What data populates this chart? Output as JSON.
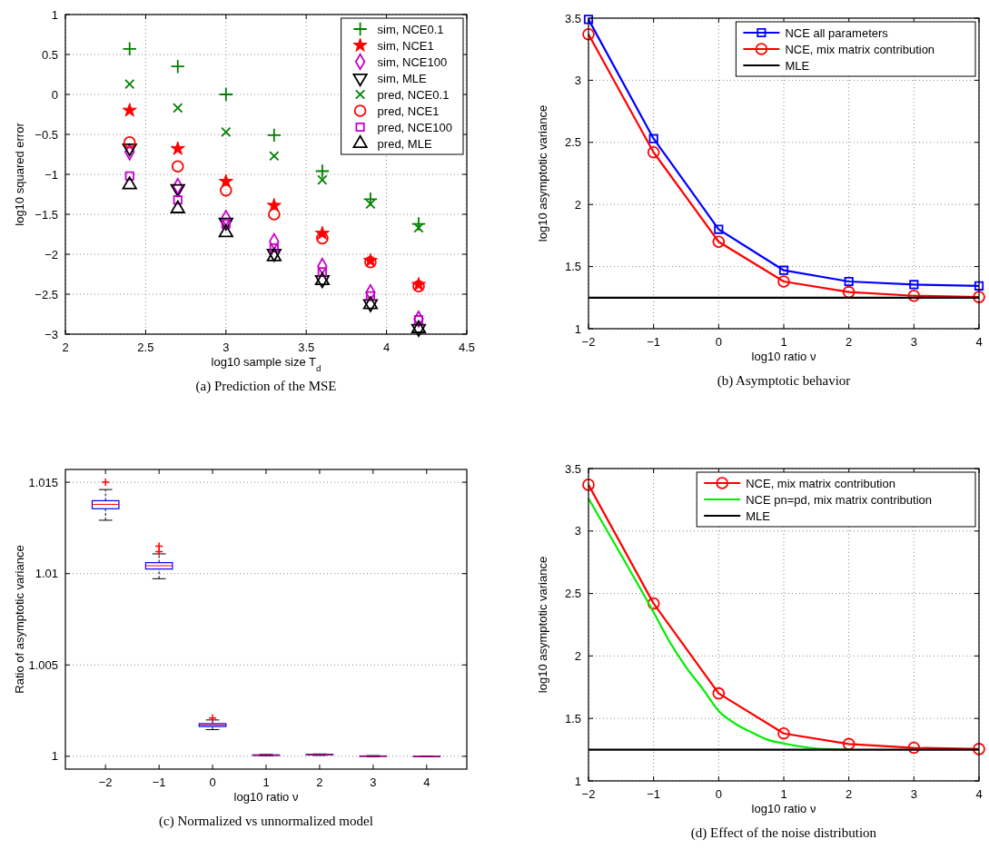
{
  "chart_data": [
    {
      "type": "scatter",
      "xlabel": "log10 sample size T$_{d}$",
      "ylabel": "log10 squared error",
      "annotations": [
        "(a) Prediction of the MSE"
      ],
      "x": [
        2.4,
        2.7,
        3.0,
        3.3,
        3.6,
        3.9,
        4.2
      ],
      "xlim": [
        2,
        4.5
      ],
      "xticks": [
        2,
        2.5,
        3,
        3.5,
        4,
        4.5
      ],
      "ylim": [
        -3,
        1
      ],
      "yticks": [
        -3,
        -2.5,
        -2,
        -1.5,
        -1,
        -0.5,
        0,
        0.5,
        1
      ],
      "grid": true,
      "legend": "top right",
      "series": [
        {
          "name": "sim, NCE0.1",
          "color": "#008000",
          "marker": "plus",
          "values": [
            0.57,
            0.35,
            0.0,
            -0.51,
            -0.96,
            -1.31,
            -1.62
          ]
        },
        {
          "name": "sim, NCE1",
          "color": "#ff0000",
          "marker": "star",
          "values": [
            -0.2,
            -0.68,
            -1.09,
            -1.39,
            -1.74,
            -2.08,
            -2.38
          ]
        },
        {
          "name": "sim, NCE100",
          "color": "#c800c8",
          "marker": "diamond",
          "values": [
            -0.72,
            -1.15,
            -1.55,
            -1.84,
            -2.15,
            -2.48,
            -2.81
          ]
        },
        {
          "name": "sim, MLE",
          "color": "#000000",
          "marker": "triangle-down",
          "values": [
            -0.67,
            -1.18,
            -1.6,
            -1.99,
            -2.32,
            -2.62,
            -2.93
          ]
        },
        {
          "name": "pred, NCE0.1",
          "color": "#008000",
          "marker": "cross",
          "values": [
            0.13,
            -0.17,
            -0.47,
            -0.77,
            -1.07,
            -1.37,
            -1.67
          ]
        },
        {
          "name": "pred, NCE1",
          "color": "#ff0000",
          "marker": "circle",
          "values": [
            -0.6,
            -0.9,
            -1.2,
            -1.5,
            -1.8,
            -2.1,
            -2.4
          ]
        },
        {
          "name": "pred, NCE100",
          "color": "#c800c8",
          "marker": "square",
          "values": [
            -1.02,
            -1.32,
            -1.62,
            -1.92,
            -2.22,
            -2.52,
            -2.82
          ]
        },
        {
          "name": "pred, MLE",
          "color": "#000000",
          "marker": "triangle",
          "values": [
            -1.13,
            -1.43,
            -1.73,
            -2.03,
            -2.33,
            -2.63,
            -2.93
          ]
        }
      ]
    },
    {
      "type": "line",
      "xlabel": "log10 ratio ν",
      "ylabel": "log10 asymptotic variance",
      "annotations": [
        "(b) Asymptotic behavior"
      ],
      "x": [
        -2,
        -1,
        0,
        1,
        2,
        3,
        4
      ],
      "xlim": [
        -2,
        4
      ],
      "xticks": [
        -2,
        -1,
        0,
        1,
        2,
        3,
        4
      ],
      "ylim": [
        1,
        3.5
      ],
      "yticks": [
        1,
        1.5,
        2,
        2.5,
        3,
        3.5
      ],
      "grid": true,
      "legend": "top right",
      "series": [
        {
          "name": "NCE all parameters",
          "color": "#0000ff",
          "marker": "square",
          "values": [
            3.49,
            2.53,
            1.8,
            1.47,
            1.38,
            1.355,
            1.345
          ]
        },
        {
          "name": "NCE, mix matrix contribution",
          "color": "#ff0000",
          "marker": "circle",
          "values": [
            3.37,
            2.42,
            1.7,
            1.38,
            1.295,
            1.265,
            1.255
          ]
        },
        {
          "name": "MLE",
          "color": "#000000",
          "marker": "none",
          "values": [
            1.25,
            1.25,
            1.25,
            1.25,
            1.25,
            1.25,
            1.25
          ]
        }
      ]
    },
    {
      "type": "box",
      "xlabel": "log10 ratio ν",
      "ylabel": "Ratio of asymptotic variance",
      "annotations": [
        "(c) Normalized vs unnormalized model"
      ],
      "categories": [
        "−2",
        "−1",
        "0",
        "1",
        "2",
        "3",
        "4"
      ],
      "ylim": [
        0.9993,
        1.0157
      ],
      "yticks": [
        1,
        1.005,
        1.01,
        1.015
      ],
      "grid": "y",
      "color": "#0000ff",
      "boxes": [
        {
          "low": 1.01292,
          "q1": 1.01355,
          "median": 1.01379,
          "q3": 1.01399,
          "high": 1.0146,
          "outliers": [
            1.015
          ]
        },
        {
          "low": 1.00972,
          "q1": 1.01025,
          "median": 1.01043,
          "q3": 1.0106,
          "high": 1.01108,
          "outliers": [
            1.0112,
            1.0115
          ]
        },
        {
          "low": 1.00146,
          "q1": 1.00163,
          "median": 1.00171,
          "q3": 1.00179,
          "high": 1.00199,
          "outliers": [
            1.0021
          ]
        },
        {
          "low": 1.00003,
          "q1": 1.00005,
          "median": 1.00006,
          "q3": 1.00008,
          "high": 1.0001
        },
        {
          "low": 1.00005,
          "q1": 1.00008,
          "median": 1.0001,
          "q3": 1.00011,
          "high": 1.00013
        },
        {
          "low": 0.99998,
          "q1": 1.0,
          "median": 1.00001,
          "q3": 1.00002,
          "high": 1.00004
        },
        {
          "low": 0.99997,
          "q1": 0.99998,
          "median": 0.99999,
          "q3": 1.0,
          "high": 1.00001
        }
      ]
    },
    {
      "type": "line",
      "xlabel": "log10 ratio ν",
      "ylabel": "log10 asymptotic variance",
      "annotations": [
        "(d) Effect of the noise distribution"
      ],
      "x": [
        -2,
        -1,
        0,
        1,
        2,
        3,
        4
      ],
      "xlim": [
        -2,
        4
      ],
      "xticks": [
        -2,
        -1,
        0,
        1,
        2,
        3,
        4
      ],
      "ylim": [
        1,
        3.5
      ],
      "yticks": [
        1,
        1.5,
        2,
        2.5,
        3,
        3.5
      ],
      "grid": true,
      "legend": "top right",
      "series": [
        {
          "name": "NCE, mix matrix contribution",
          "color": "#ff0000",
          "marker": "circle",
          "values": [
            3.37,
            2.42,
            1.7,
            1.38,
            1.295,
            1.265,
            1.255
          ]
        },
        {
          "name": "NCE pn=pd, mix matrix contribution",
          "color": "#00ee00",
          "marker": "none",
          "x": [
            -2,
            -1.5,
            -1,
            -0.75,
            -0.5,
            -0.25,
            0,
            0.25,
            0.5,
            0.75,
            1,
            1.5,
            2
          ],
          "values": [
            3.26,
            2.81,
            2.35,
            2.11,
            1.91,
            1.74,
            1.56,
            1.46,
            1.39,
            1.33,
            1.3,
            1.26,
            1.25
          ]
        },
        {
          "name": "MLE",
          "color": "#000000",
          "marker": "none",
          "values": [
            1.25,
            1.25,
            1.25,
            1.25,
            1.25,
            1.25,
            1.25
          ]
        }
      ]
    }
  ]
}
